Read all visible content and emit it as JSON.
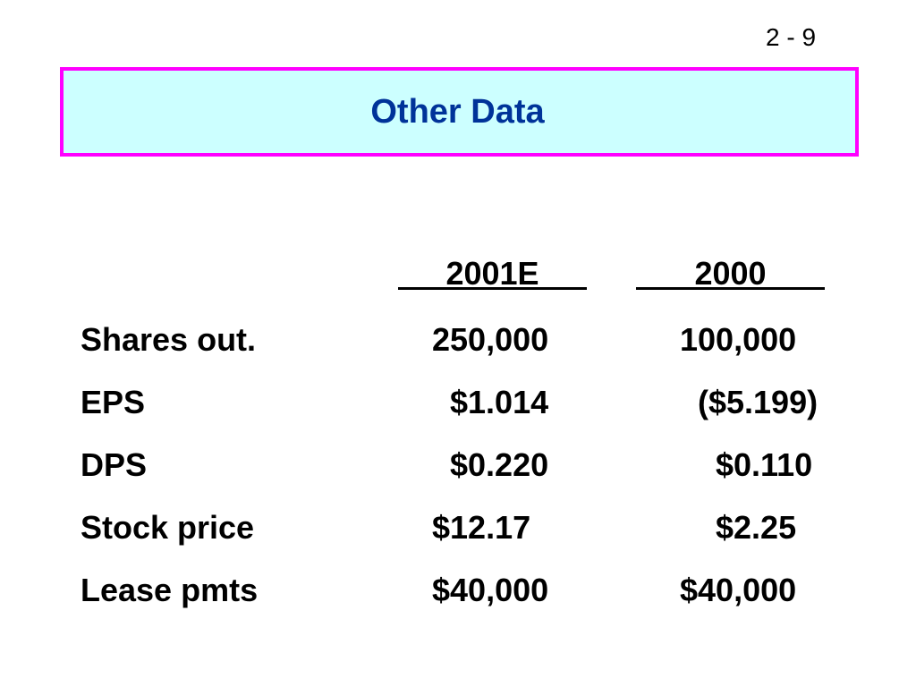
{
  "slide": {
    "page_number": "2 - 9",
    "title": "Other Data"
  },
  "colors": {
    "title_fill": "#ccffff",
    "title_border": "#ff00ff",
    "title_text": "#003399"
  },
  "table": {
    "headers": [
      "2001E",
      "2000"
    ],
    "rows": [
      {
        "label": "Shares out.",
        "v2001": "250,000",
        "v2000": "100,000"
      },
      {
        "label": "EPS",
        "v2001": "  $1.014",
        "v2000": "  ($5.199)"
      },
      {
        "label": "DPS",
        "v2001": "  $0.220",
        "v2000": "    $0.110"
      },
      {
        "label": "Stock price",
        "v2001": "$12.17",
        "v2000": "    $2.25"
      },
      {
        "label": "Lease pmts",
        "v2001": "$40,000",
        "v2000": "$40,000"
      }
    ]
  }
}
